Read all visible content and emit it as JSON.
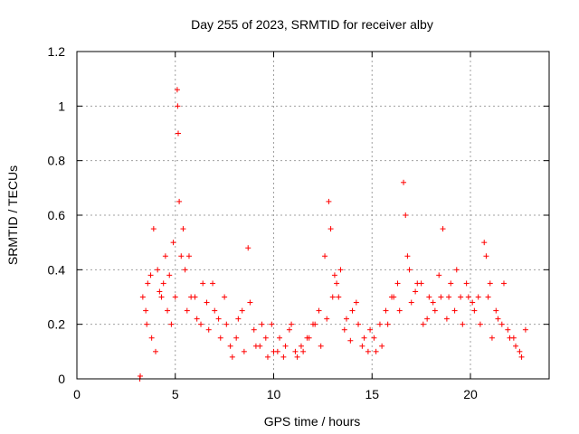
{
  "chart_data": {
    "type": "scatter",
    "title": "Day 255 of 2023, SRMTID for receiver alby",
    "xlabel": "GPS time / hours",
    "ylabel": "SRMTID / TECUs",
    "xlim": [
      0,
      24
    ],
    "ylim": [
      0,
      1.2
    ],
    "xticks": [
      0,
      5,
      10,
      15,
      20
    ],
    "yticks": [
      0,
      0.2,
      0.4,
      0.6,
      0.8,
      1.0,
      1.2
    ],
    "xtick_labels": [
      "0",
      "5",
      "10",
      "15",
      "20"
    ],
    "ytick_labels": [
      "0",
      "0.2",
      "0.4",
      "0.6",
      "0.8",
      "1",
      "1.2"
    ],
    "grid": true,
    "marker": "+",
    "color": "#ff0000",
    "series": [
      {
        "name": "SRMTID",
        "x": [
          3.2,
          3.22,
          3.5,
          3.6,
          3.75,
          3.9,
          4.1,
          4.3,
          4.5,
          4.7,
          4.9,
          5.1,
          5.12,
          5.15,
          5.2,
          5.4,
          5.7,
          6.0,
          6.3,
          6.6,
          6.9,
          7.2,
          7.5,
          7.8,
          8.1,
          8.4,
          8.7,
          9.0,
          9.3,
          9.6,
          9.9,
          10.2,
          10.5,
          10.8,
          11.1,
          11.4,
          11.7,
          12.0,
          12.3,
          12.6,
          12.8,
          12.9,
          13.1,
          13.3,
          13.6,
          13.9,
          14.2,
          14.5,
          14.8,
          15.1,
          15.4,
          15.7,
          16.0,
          16.3,
          16.6,
          16.7,
          16.9,
          17.2,
          17.5,
          17.8,
          18.1,
          18.4,
          18.6,
          18.9,
          19.2,
          19.5,
          19.8,
          20.1,
          20.4,
          20.7,
          20.8,
          21.0,
          21.3,
          21.6,
          21.9,
          22.2,
          22.5,
          22.8,
          3.35,
          3.55,
          3.8,
          4.0,
          4.2,
          4.4,
          4.6,
          4.8,
          5.0,
          5.3,
          5.5,
          5.6,
          5.8,
          6.1,
          6.4,
          6.7,
          7.0,
          7.3,
          7.6,
          7.9,
          8.2,
          8.5,
          8.8,
          9.1,
          9.4,
          9.7,
          10.0,
          10.3,
          10.6,
          10.9,
          11.2,
          11.5,
          11.8,
          12.1,
          12.4,
          12.7,
          13.0,
          13.2,
          13.4,
          13.7,
          14.0,
          14.3,
          14.6,
          14.9,
          15.2,
          15.5,
          15.8,
          16.1,
          16.4,
          16.8,
          17.0,
          17.3,
          17.6,
          17.9,
          18.2,
          18.5,
          18.8,
          19.0,
          19.3,
          19.6,
          19.9,
          20.2,
          20.5,
          20.9,
          21.1,
          21.4,
          21.7,
          22.0,
          22.3,
          22.6
        ],
        "y": [
          0.0,
          0.01,
          0.25,
          0.35,
          0.38,
          0.55,
          0.4,
          0.3,
          0.45,
          0.38,
          0.5,
          1.06,
          1.0,
          0.9,
          0.65,
          0.55,
          0.45,
          0.3,
          0.2,
          0.28,
          0.35,
          0.22,
          0.3,
          0.12,
          0.15,
          0.25,
          0.48,
          0.18,
          0.12,
          0.15,
          0.2,
          0.1,
          0.08,
          0.18,
          0.1,
          0.12,
          0.15,
          0.2,
          0.25,
          0.45,
          0.65,
          0.55,
          0.38,
          0.3,
          0.18,
          0.14,
          0.28,
          0.12,
          0.1,
          0.15,
          0.2,
          0.25,
          0.3,
          0.35,
          0.72,
          0.6,
          0.4,
          0.32,
          0.35,
          0.22,
          0.28,
          0.38,
          0.55,
          0.3,
          0.25,
          0.3,
          0.35,
          0.28,
          0.3,
          0.5,
          0.45,
          0.35,
          0.25,
          0.2,
          0.18,
          0.15,
          0.1,
          0.18,
          0.3,
          0.2,
          0.15,
          0.1,
          0.32,
          0.35,
          0.25,
          0.2,
          0.3,
          0.45,
          0.4,
          0.25,
          0.3,
          0.22,
          0.35,
          0.18,
          0.25,
          0.15,
          0.2,
          0.08,
          0.22,
          0.1,
          0.28,
          0.12,
          0.2,
          0.08,
          0.1,
          0.15,
          0.12,
          0.2,
          0.08,
          0.1,
          0.15,
          0.2,
          0.12,
          0.22,
          0.3,
          0.35,
          0.4,
          0.22,
          0.25,
          0.2,
          0.15,
          0.18,
          0.1,
          0.12,
          0.2,
          0.3,
          0.25,
          0.45,
          0.28,
          0.35,
          0.2,
          0.3,
          0.25,
          0.3,
          0.22,
          0.35,
          0.4,
          0.2,
          0.3,
          0.25,
          0.2,
          0.3,
          0.15,
          0.22,
          0.35,
          0.15,
          0.12,
          0.08
        ]
      }
    ]
  }
}
